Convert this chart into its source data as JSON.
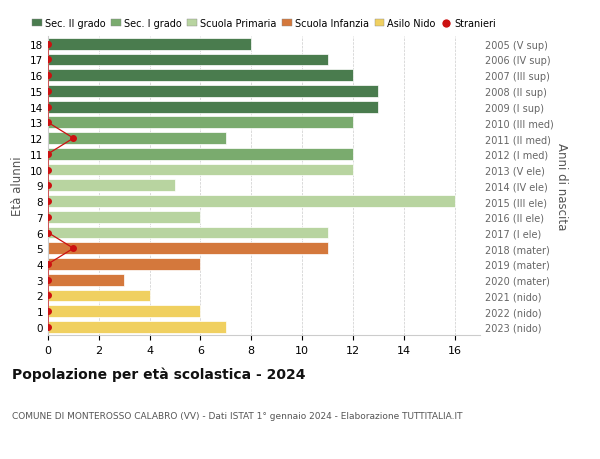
{
  "ages": [
    18,
    17,
    16,
    15,
    14,
    13,
    12,
    11,
    10,
    9,
    8,
    7,
    6,
    5,
    4,
    3,
    2,
    1,
    0
  ],
  "values": [
    8,
    11,
    12,
    13,
    13,
    12,
    7,
    12,
    12,
    5,
    16,
    6,
    11,
    11,
    6,
    3,
    4,
    6,
    7
  ],
  "colors": [
    "#4a7c4e",
    "#4a7c4e",
    "#4a7c4e",
    "#4a7c4e",
    "#4a7c4e",
    "#7aab6e",
    "#7aab6e",
    "#7aab6e",
    "#b8d4a0",
    "#b8d4a0",
    "#b8d4a0",
    "#b8d4a0",
    "#b8d4a0",
    "#d4783c",
    "#d4783c",
    "#d4783c",
    "#f0d060",
    "#f0d060",
    "#f0d060"
  ],
  "right_labels": [
    "2005 (V sup)",
    "2006 (IV sup)",
    "2007 (III sup)",
    "2008 (II sup)",
    "2009 (I sup)",
    "2010 (III med)",
    "2011 (II med)",
    "2012 (I med)",
    "2013 (V ele)",
    "2014 (IV ele)",
    "2015 (III ele)",
    "2016 (II ele)",
    "2017 (I ele)",
    "2018 (mater)",
    "2019 (mater)",
    "2020 (mater)",
    "2021 (nido)",
    "2022 (nido)",
    "2023 (nido)"
  ],
  "legend_labels": [
    "Sec. II grado",
    "Sec. I grado",
    "Scuola Primaria",
    "Scuola Infanzia",
    "Asilo Nido",
    "Stranieri"
  ],
  "legend_colors": [
    "#4a7c4e",
    "#7aab6e",
    "#b8d4a0",
    "#d4783c",
    "#f0d060",
    "#cc1111"
  ],
  "stranieri_color": "#cc1111",
  "stranieri_x": [
    0,
    0,
    0,
    0,
    0,
    0,
    1,
    0,
    0,
    0,
    0,
    0,
    0,
    1,
    0,
    0,
    0,
    0,
    0
  ],
  "title": "Popolazione per età scolastica - 2024",
  "subtitle": "COMUNE DI MONTEROSSO CALABRO (VV) - Dati ISTAT 1° gennaio 2024 - Elaborazione TUTTITALIA.IT",
  "ylabel": "Età alunni",
  "ylabel_right": "Anni di nascita",
  "xlim": [
    0,
    17
  ],
  "xticks": [
    0,
    2,
    4,
    6,
    8,
    10,
    12,
    14,
    16
  ]
}
